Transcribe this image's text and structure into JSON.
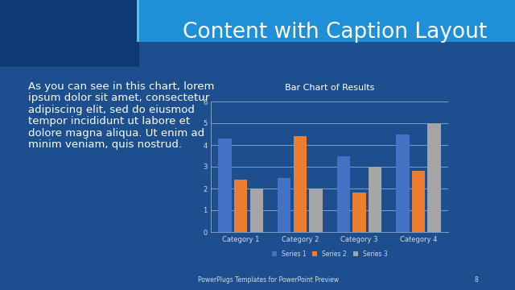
{
  "slide": {
    "title": "Content with Caption Layout",
    "caption": "As you can see in this chart, lorem\nipsum dolor sit amet, consectetur\nadipiscing elit, sed do eiusmod\ntempor incididunt ut labore et\ndolore magna aliqua. Ut enim ad\nminim veniam, quis nostrud.",
    "footer": "PowerPlugs Templates for PowerPoint Preview",
    "page": "8"
  },
  "chart_data": {
    "type": "bar",
    "title": "Bar Chart of Results",
    "categories": [
      "Category 1",
      "Category 2",
      "Category 3",
      "Category 4"
    ],
    "series": [
      {
        "name": "Series 1",
        "color": "#4472c4",
        "values": [
          4.3,
          2.5,
          3.5,
          4.5
        ]
      },
      {
        "name": "Series 2",
        "color": "#ed7d31",
        "values": [
          2.4,
          4.4,
          1.8,
          2.8
        ]
      },
      {
        "name": "Series 3",
        "color": "#a5a5a5",
        "values": [
          2,
          2,
          3,
          5
        ]
      }
    ],
    "ylim": [
      0,
      6
    ],
    "yticks": [
      0,
      1,
      2,
      3,
      4,
      5,
      6
    ],
    "grid": true,
    "legend": "bottom"
  }
}
